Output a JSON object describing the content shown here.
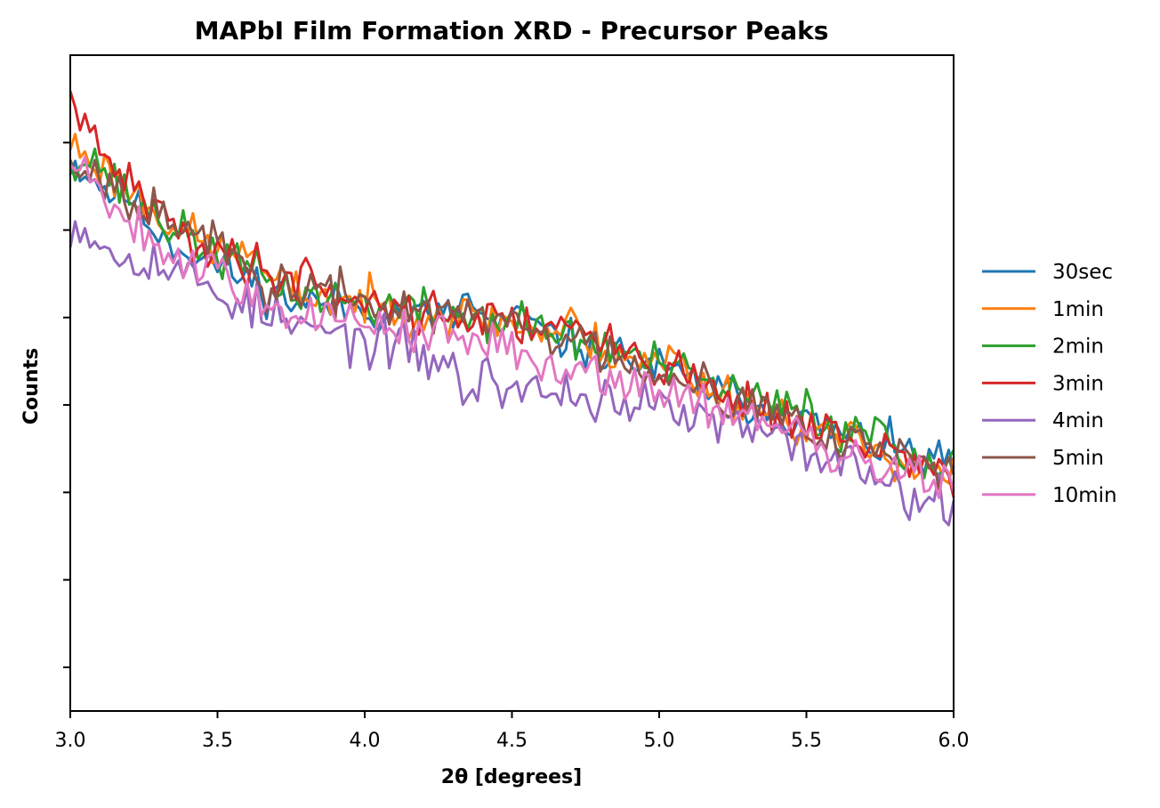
{
  "chart_data": {
    "type": "line",
    "title": "MAPbI Film Formation XRD - Precursor Peaks",
    "xlabel": "2θ [degrees]",
    "ylabel": "Counts",
    "xlim": [
      3.0,
      6.0
    ],
    "ylim": [
      -0.5,
      7.0
    ],
    "x_ticks": [
      "3.0",
      "3.5",
      "4.0",
      "4.5",
      "5.0",
      "5.5",
      "6.0"
    ],
    "y_tick_labels_shown": false,
    "legend_position": "right-outside",
    "grid": false,
    "x_sampling": {
      "start": 3.0,
      "stop": 6.0,
      "points": 181
    },
    "series": [
      {
        "name": "30sec",
        "color": "#1f77b4",
        "seed": 11,
        "trend": [
          5.8,
          4.8,
          4.2,
          4.05,
          3.9,
          3.55,
          3.1,
          2.65,
          2.3
        ],
        "noise": 0.17,
        "bumps": [
          [
            3.2,
            0.15
          ],
          [
            4.35,
            0.3
          ],
          [
            4.55,
            0.2
          ]
        ]
      },
      {
        "name": "1min",
        "color": "#ff7f0e",
        "seed": 23,
        "trend": [
          6.0,
          5.0,
          4.3,
          4.1,
          3.95,
          3.6,
          3.1,
          2.6,
          2.2
        ],
        "noise": 0.17,
        "bumps": [
          [
            3.6,
            0.3
          ],
          [
            4.7,
            0.2
          ],
          [
            5.05,
            0.25
          ]
        ]
      },
      {
        "name": "2min",
        "color": "#2ca02c",
        "seed": 37,
        "trend": [
          5.9,
          4.95,
          4.3,
          4.1,
          3.95,
          3.6,
          3.15,
          2.7,
          2.3
        ],
        "noise": 0.17,
        "bumps": [
          [
            3.1,
            0.15
          ],
          [
            5.5,
            0.2
          ],
          [
            5.75,
            0.3
          ]
        ]
      },
      {
        "name": "3min",
        "color": "#d62728",
        "seed": 41,
        "trend": [
          6.2,
          4.95,
          4.4,
          4.1,
          3.95,
          3.65,
          3.1,
          2.6,
          2.2
        ],
        "noise": 0.17,
        "bumps": [
          [
            3.02,
            0.35
          ],
          [
            3.8,
            0.25
          ],
          [
            4.65,
            0.25
          ]
        ]
      },
      {
        "name": "4min",
        "color": "#9467bd",
        "seed": 53,
        "trend": [
          5.1,
          4.5,
          3.9,
          3.65,
          3.2,
          3.05,
          2.75,
          2.35,
          1.95
        ],
        "noise": 0.19,
        "bumps": [
          [
            3.15,
            -0.2
          ],
          [
            4.35,
            -0.3
          ],
          [
            5.85,
            -0.35
          ]
        ]
      },
      {
        "name": "5min",
        "color": "#8c564b",
        "seed": 67,
        "trend": [
          5.85,
          5.0,
          4.35,
          4.1,
          3.95,
          3.55,
          3.05,
          2.65,
          2.25
        ],
        "noise": 0.17,
        "bumps": [
          [
            3.3,
            0.25
          ],
          [
            3.65,
            -0.35
          ],
          [
            5.15,
            0.3
          ]
        ]
      },
      {
        "name": "10min",
        "color": "#e377c2",
        "seed": 79,
        "trend": [
          5.7,
          4.65,
          4.05,
          3.9,
          3.6,
          3.3,
          2.95,
          2.45,
          2.1
        ],
        "noise": 0.17,
        "bumps": [
          [
            3.05,
            0.25
          ],
          [
            3.5,
            0.2
          ],
          [
            5.6,
            -0.25
          ]
        ]
      }
    ]
  }
}
